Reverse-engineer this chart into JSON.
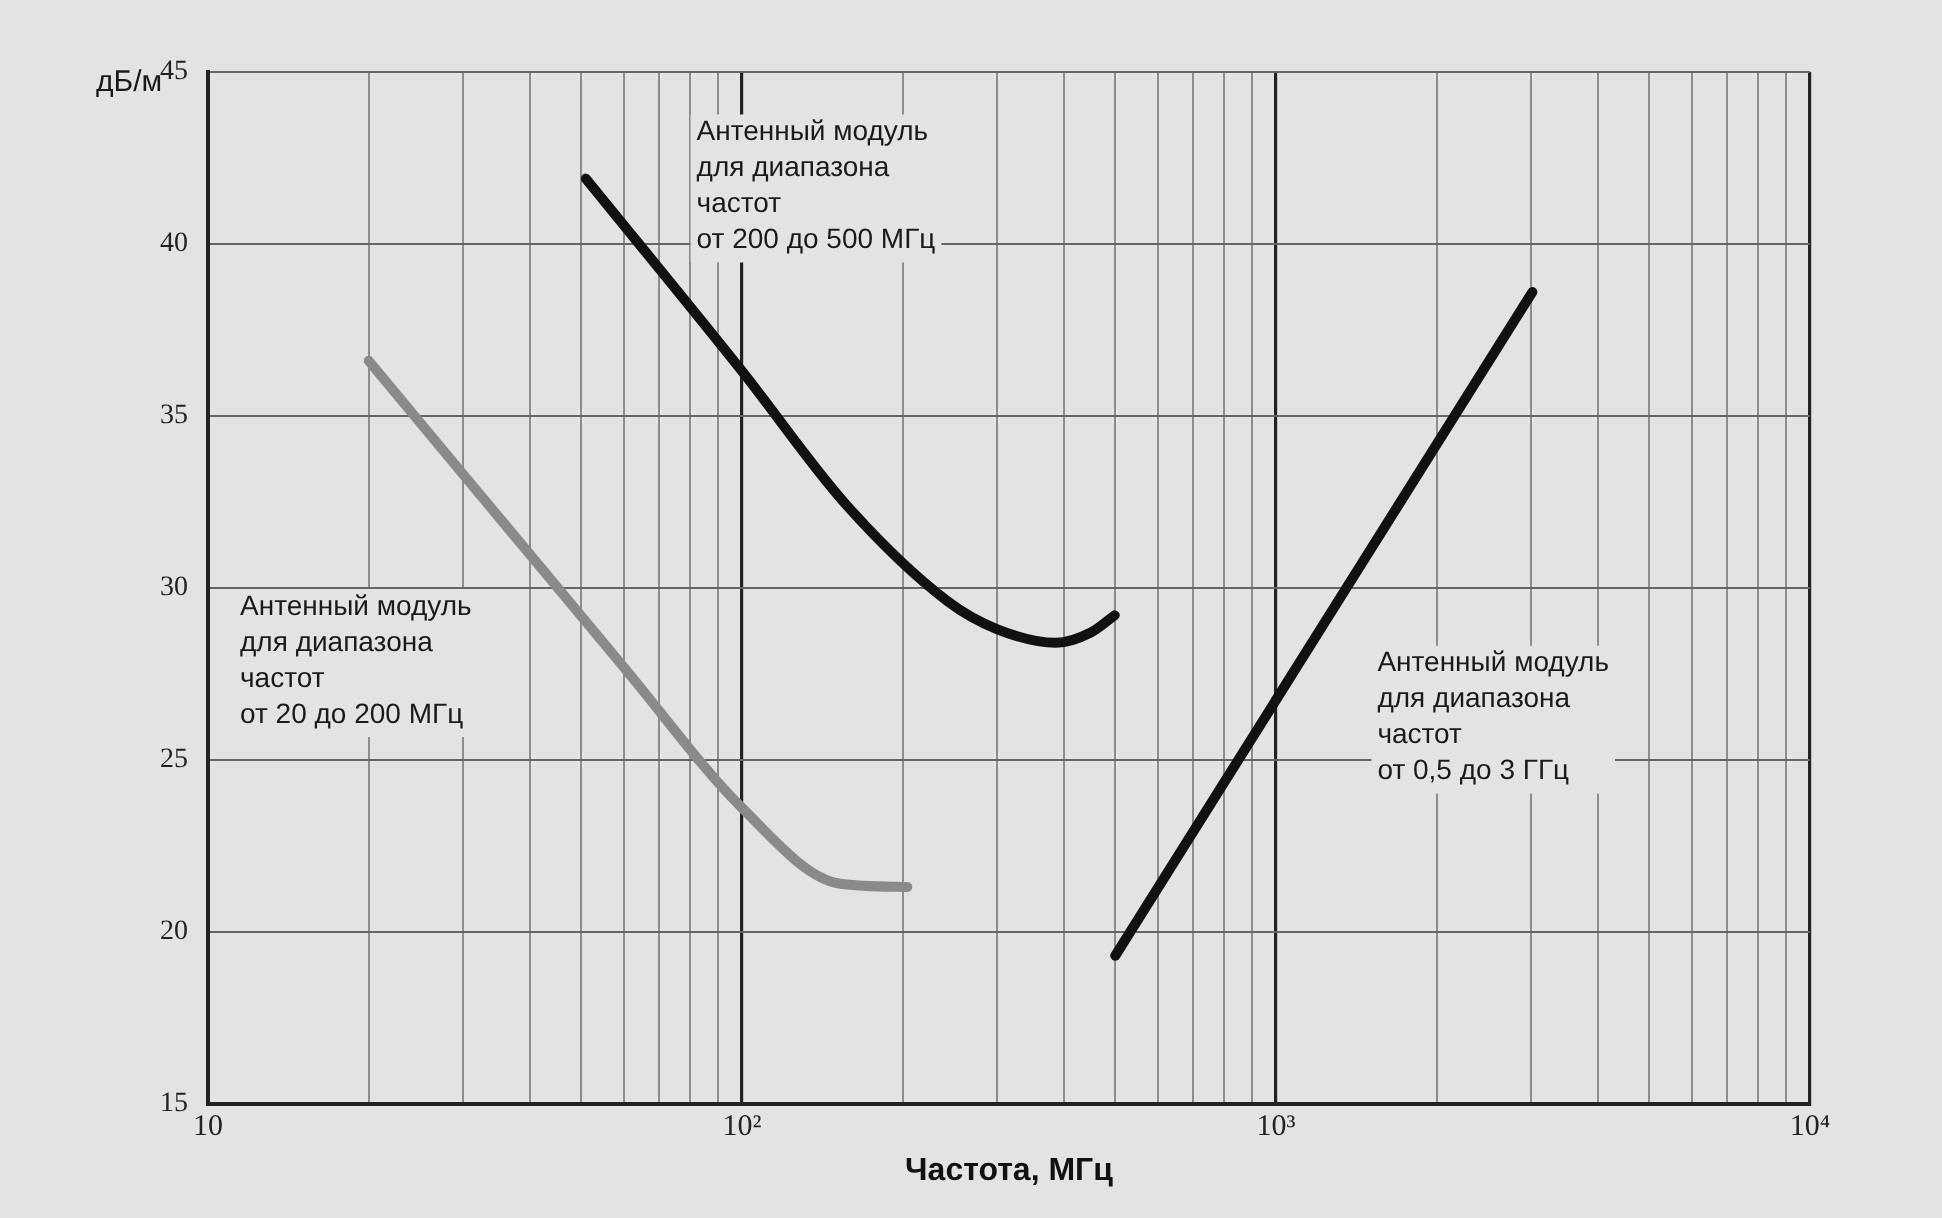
{
  "chart_data": {
    "type": "line",
    "xlabel": "Частота, МГц",
    "ylabel": "дБ/м",
    "log": "x",
    "xlim": [
      10,
      10000
    ],
    "ylim": [
      15,
      45
    ],
    "xticks": [
      10,
      {
        "value": 20,
        "label": null
      },
      {
        "value": 30,
        "label": null
      },
      {
        "value": 40,
        "label": null
      },
      {
        "value": 50,
        "label": null
      },
      {
        "value": 60,
        "label": null
      },
      {
        "value": 70,
        "label": null
      },
      {
        "value": 80,
        "label": null
      },
      {
        "value": 90,
        "label": null
      },
      {
        "value": 100,
        "label": "10²"
      },
      {
        "value": 200,
        "label": null
      },
      {
        "value": 300,
        "label": null
      },
      {
        "value": 400,
        "label": null
      },
      {
        "value": 500,
        "label": null
      },
      {
        "value": 600,
        "label": null
      },
      {
        "value": 700,
        "label": null
      },
      {
        "value": 800,
        "label": null
      },
      {
        "value": 900,
        "label": null
      },
      {
        "value": 1000,
        "label": "10³"
      },
      {
        "value": 2000,
        "label": null
      },
      {
        "value": 3000,
        "label": null
      },
      {
        "value": 4000,
        "label": null
      },
      {
        "value": 5000,
        "label": null
      },
      {
        "value": 6000,
        "label": null
      },
      {
        "value": 7000,
        "label": null
      },
      {
        "value": 8000,
        "label": null
      },
      {
        "value": 9000,
        "label": null
      },
      {
        "value": 10000,
        "label": "10⁴"
      }
    ],
    "yticks": [
      15,
      20,
      25,
      30,
      35,
      40,
      45
    ],
    "grid": true,
    "legend": false,
    "marker": "none",
    "line_style": "solid",
    "series": [
      {
        "name": "Антенный модуль\nдля диапазона\nчастот\nот 20 до 200 МГц",
        "color": "#8a8a8a",
        "x": [
          20,
          60,
          100,
          152,
          204
        ],
        "values": [
          36.6,
          27.7,
          23.6,
          21.4,
          21.3
        ]
      },
      {
        "name": "Антенный модуль\nдля диапазона\nчастот\nот 200 до 500 МГц",
        "color": "#111111",
        "x": [
          51,
          100,
          157,
          243,
          300,
          387,
          450,
          499
        ],
        "values": [
          41.9,
          36.3,
          32.4,
          29.6,
          28.8,
          28.4,
          28.7,
          29.2
        ]
      },
      {
        "name": "Антенный модуль\nдля диапазона\nчастот\nот 0,5 до 3 ГГц",
        "color": "#111111",
        "x": [
          500,
          3020
        ],
        "values": [
          19.3,
          38.6
        ]
      }
    ]
  }
}
